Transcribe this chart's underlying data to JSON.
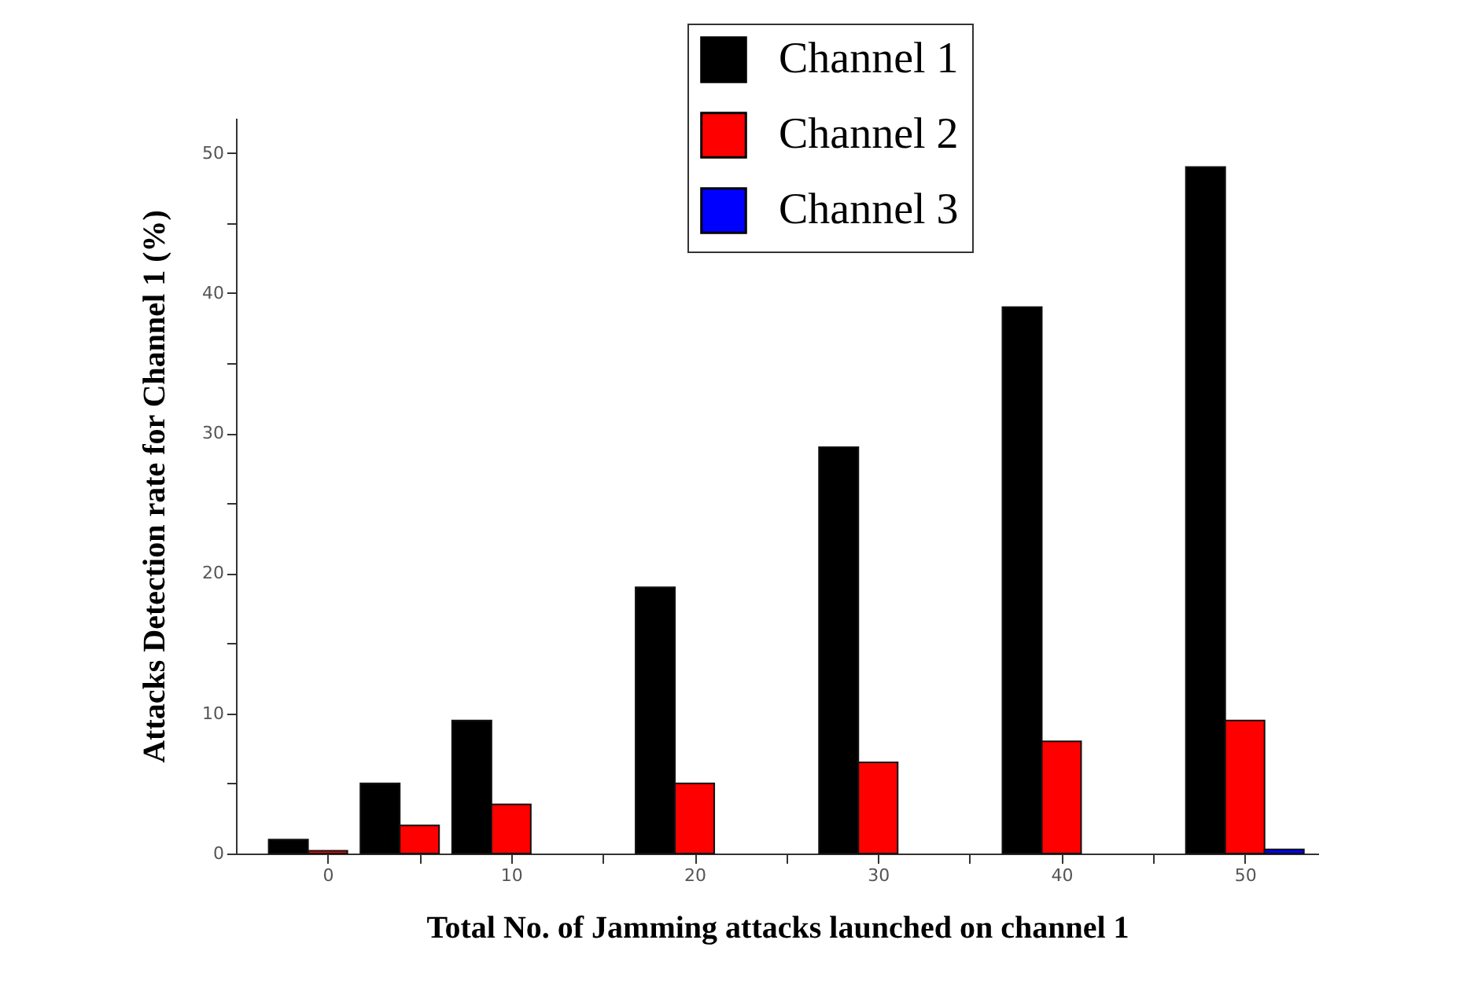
{
  "chart_data": {
    "type": "bar",
    "xlabel": "Total No. of Jamming attacks launched on channel 1",
    "ylabel": "Attacks Detection rate for Channel 1 (%)",
    "x": [
      0,
      5,
      10,
      20,
      30,
      40,
      50
    ],
    "series": [
      {
        "name": "Channel 1",
        "color": "#000000",
        "values": [
          1,
          5,
          9.5,
          19,
          29,
          39,
          49
        ]
      },
      {
        "name": "Channel 2",
        "color": "#ff0000",
        "values": [
          0.2,
          2,
          3.5,
          5,
          6.5,
          8,
          9.5
        ]
      },
      {
        "name": "Channel 3",
        "color": "#0000ff",
        "values": [
          null,
          null,
          null,
          null,
          null,
          null,
          0.3
        ]
      }
    ],
    "xlim": [
      -5,
      54
    ],
    "xticks": [
      0,
      {
        "value": 5,
        "label": null
      },
      10,
      {
        "value": 15,
        "label": null
      },
      20,
      {
        "value": 25,
        "label": null
      },
      30,
      {
        "value": 35,
        "label": null
      },
      40,
      {
        "value": 45,
        "label": null
      },
      50
    ],
    "ylim": [
      0,
      52.5
    ],
    "yticks": [
      0,
      {
        "value": 5,
        "label": null
      },
      10,
      {
        "value": 15,
        "label": null
      },
      20,
      {
        "value": 25,
        "label": null
      },
      30,
      {
        "value": 35,
        "label": null
      },
      40,
      {
        "value": 45,
        "label": null
      },
      50
    ],
    "legend": "top right",
    "grid": false
  }
}
